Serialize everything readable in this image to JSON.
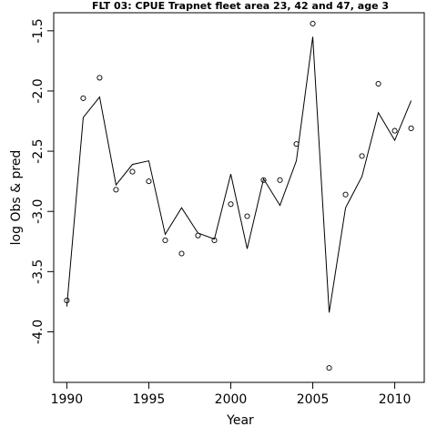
{
  "chart_data": {
    "type": "line",
    "title": "FLT 03: CPUE Trapnet fleet area 23, 42 and 47, age 3",
    "xlabel": "Year",
    "ylabel": "log Obs & pred",
    "xlim": [
      1989.2,
      2011.8
    ],
    "ylim": [
      -4.42,
      -1.35
    ],
    "x_ticks": [
      1990,
      1995,
      2000,
      2005,
      2010
    ],
    "x_tick_labels": [
      "1990",
      "1995",
      "2000",
      "2005",
      "2010"
    ],
    "y_ticks": [
      -4.0,
      -3.5,
      -3.0,
      -2.5,
      -2.0,
      -1.5
    ],
    "y_tick_labels": [
      "-4.0",
      "-3.5",
      "-3.0",
      "-2.5",
      "-2.0",
      "-1.5"
    ],
    "grid": false,
    "series": [
      {
        "type": "scatter",
        "marker": "open-circle",
        "x": [
          1990,
          1991,
          1992,
          1993,
          1994,
          1995,
          1996,
          1997,
          1998,
          1999,
          2000,
          2001,
          2002,
          2003,
          2004,
          2005,
          2006,
          2007,
          2008,
          2009,
          2010,
          2011
        ],
        "values": [
          -3.74,
          -2.06,
          -1.89,
          -2.82,
          -2.67,
          -2.75,
          -3.24,
          -3.35,
          -3.2,
          -3.24,
          -2.94,
          -3.04,
          -2.74,
          -2.74,
          -2.44,
          -1.44,
          -4.3,
          -2.86,
          -2.54,
          -1.94,
          -2.33,
          -2.31
        ]
      },
      {
        "type": "line",
        "x": [
          1990,
          1991,
          1992,
          1993,
          1994,
          1995,
          1996,
          1997,
          1998,
          1999,
          2000,
          2001,
          2002,
          2003,
          2004,
          2005,
          2006,
          2007,
          2008,
          2009,
          2010,
          2011
        ],
        "values": [
          -3.79,
          -2.22,
          -2.05,
          -2.78,
          -2.61,
          -2.58,
          -3.19,
          -2.97,
          -3.18,
          -3.23,
          -2.69,
          -3.31,
          -2.73,
          -2.95,
          -2.58,
          -1.55,
          -3.84,
          -2.97,
          -2.71,
          -2.18,
          -2.41,
          -2.08
        ]
      }
    ]
  }
}
